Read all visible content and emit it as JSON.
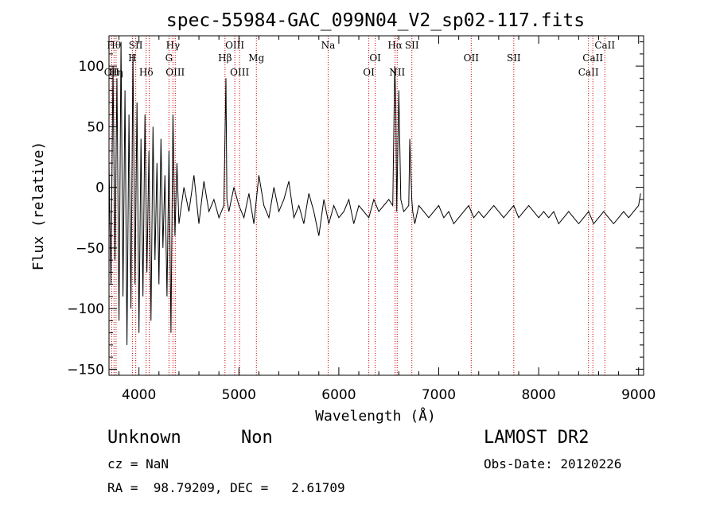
{
  "chart_data": {
    "type": "line",
    "title": "spec-55984-GAC_099N04_V2_sp02-117.fits",
    "xlabel": "Wavelength (Å)",
    "ylabel": "Flux (relative)",
    "xlim": [
      3700,
      9050
    ],
    "ylim": [
      -155,
      125
    ],
    "xticks": [
      4000,
      5000,
      6000,
      7000,
      8000,
      9000
    ],
    "yticks": [
      -150,
      -100,
      -50,
      0,
      50,
      100
    ],
    "grid": false,
    "series": [
      {
        "x": [
          3700,
          3720,
          3740,
          3760,
          3780,
          3800,
          3820,
          3840,
          3860,
          3880,
          3900,
          3920,
          3940,
          3960,
          3980,
          4000,
          4020,
          4040,
          4060,
          4080,
          4100,
          4120,
          4140,
          4160,
          4180,
          4200,
          4220,
          4240,
          4260,
          4280,
          4300,
          4320,
          4340,
          4360,
          4380,
          4400,
          4450,
          4500,
          4550,
          4600,
          4650,
          4700,
          4750,
          4800,
          4850,
          4870,
          4880,
          4900,
          4950,
          5000,
          5050,
          5100,
          5150,
          5200,
          5250,
          5300,
          5350,
          5400,
          5450,
          5500,
          5550,
          5600,
          5650,
          5700,
          5750,
          5800,
          5850,
          5900,
          5950,
          6000,
          6050,
          6100,
          6150,
          6200,
          6250,
          6300,
          6350,
          6400,
          6450,
          6500,
          6540,
          6560,
          6570,
          6580,
          6600,
          6620,
          6650,
          6700,
          6710,
          6730,
          6740,
          6760,
          6800,
          6850,
          6900,
          6950,
          7000,
          7050,
          7100,
          7150,
          7200,
          7250,
          7300,
          7350,
          7400,
          7450,
          7500,
          7550,
          7600,
          7650,
          7700,
          7750,
          7800,
          7850,
          7900,
          7950,
          8000,
          8050,
          8100,
          8150,
          8200,
          8250,
          8300,
          8350,
          8400,
          8450,
          8500,
          8550,
          8600,
          8650,
          8700,
          8750,
          8800,
          8850,
          8900,
          8950,
          9000,
          9020
        ],
        "y": [
          20,
          -80,
          100,
          -60,
          90,
          -110,
          120,
          -90,
          80,
          -130,
          60,
          -100,
          110,
          -80,
          70,
          -120,
          40,
          -90,
          60,
          -70,
          30,
          -110,
          50,
          -60,
          20,
          -80,
          40,
          -50,
          10,
          -90,
          30,
          -120,
          60,
          -40,
          20,
          -30,
          0,
          -20,
          10,
          -30,
          5,
          -20,
          -10,
          -25,
          -15,
          90,
          -10,
          -20,
          0,
          -15,
          -25,
          -5,
          -30,
          10,
          -15,
          -25,
          0,
          -20,
          -10,
          5,
          -25,
          -15,
          -30,
          -5,
          -20,
          -40,
          -10,
          -30,
          -15,
          -25,
          -20,
          -10,
          -30,
          -15,
          -20,
          -25,
          -10,
          -20,
          -15,
          -10,
          -15,
          100,
          70,
          -20,
          80,
          -10,
          -20,
          -15,
          40,
          -10,
          -20,
          -30,
          -15,
          -20,
          -25,
          -20,
          -15,
          -25,
          -20,
          -30,
          -25,
          -20,
          -15,
          -25,
          -20,
          -25,
          -20,
          -15,
          -20,
          -25,
          -20,
          -15,
          -25,
          -20,
          -15,
          -20,
          -25,
          -20,
          -25,
          -20,
          -30,
          -25,
          -20,
          -25,
          -30,
          -25,
          -20,
          -30,
          -25,
          -20,
          -25,
          -30,
          -25,
          -20,
          -25,
          -20,
          -15,
          -5
        ]
      }
    ],
    "lines": [
      {
        "x": 3727,
        "label": "OII",
        "row": 3
      },
      {
        "x": 3750,
        "label": "Hθ",
        "row": 1
      },
      {
        "x": 3771,
        "label": "Hη",
        "row": 3
      },
      {
        "x": 3934,
        "label": "H",
        "row": 2
      },
      {
        "x": 3968,
        "label": "SII",
        "row": 1
      },
      {
        "x": 4072,
        "label": "Hδ",
        "row": 3
      },
      {
        "x": 4102,
        "label": "",
        "row": 0
      },
      {
        "x": 4300,
        "label": "G",
        "row": 2
      },
      {
        "x": 4340,
        "label": "Hγ",
        "row": 1
      },
      {
        "x": 4363,
        "label": "OIII",
        "row": 3
      },
      {
        "x": 4861,
        "label": "Hβ",
        "row": 2
      },
      {
        "x": 4959,
        "label": "OIII",
        "row": 1
      },
      {
        "x": 5007,
        "label": "OIII",
        "row": 3
      },
      {
        "x": 5175,
        "label": "Mg",
        "row": 2
      },
      {
        "x": 5893,
        "label": "Na",
        "row": 1
      },
      {
        "x": 6300,
        "label": "OI",
        "row": 3
      },
      {
        "x": 6364,
        "label": "OI",
        "row": 2
      },
      {
        "x": 6563,
        "label": "Hα",
        "row": 1
      },
      {
        "x": 6584,
        "label": "NII",
        "row": 3
      },
      {
        "x": 6731,
        "label": "SII",
        "row": 1
      },
      {
        "x": 7325,
        "label": "OII",
        "row": 2
      },
      {
        "x": 7751,
        "label": "SII",
        "row": 2
      },
      {
        "x": 8498,
        "label": "CaII",
        "row": 3
      },
      {
        "x": 8542,
        "label": "CaII",
        "row": 2
      },
      {
        "x": 8662,
        "label": "CaII",
        "row": 1
      }
    ]
  },
  "footer": {
    "class_label": "Unknown",
    "subclass_label": "Non",
    "survey": "LAMOST DR2",
    "cz": "cz = NaN",
    "obs_date": "Obs-Date: 20120226",
    "coords": "RA =  98.79209, DEC =   2.61709"
  },
  "colors": {
    "spectrum": "#000000",
    "line_marker": "#cc0000",
    "axis": "#000000"
  }
}
